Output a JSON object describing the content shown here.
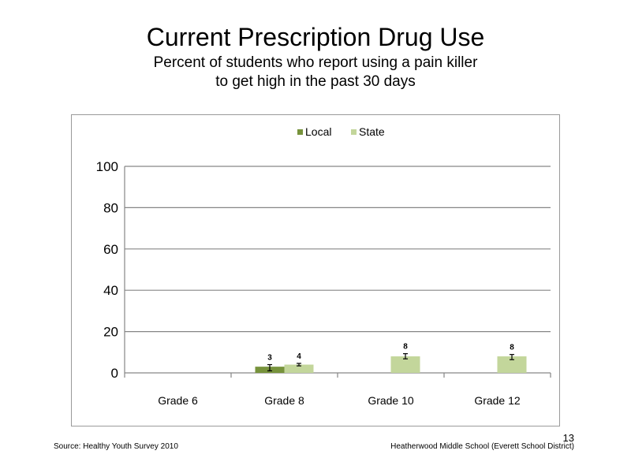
{
  "slide": {
    "title": "Current Prescription Drug Use",
    "subtitle_line1": "Percent of students who report using a pain killer",
    "subtitle_line2": "to get high in the past 30 days"
  },
  "footer": {
    "source": "Source: Healthy Youth Survey 2010",
    "school": "Heatherwood Middle  School (Everett School District)",
    "page_number": "13"
  },
  "chart_data": {
    "type": "bar",
    "title": "",
    "xlabel": "",
    "ylabel": "",
    "categories": [
      "Grade 6",
      "Grade 8",
      "Grade 10",
      "Grade 12"
    ],
    "ylim": [
      0,
      100
    ],
    "yticks": [
      0,
      20,
      40,
      60,
      80,
      100
    ],
    "grid": true,
    "legend_position": "top-center",
    "series": [
      {
        "name": "Local",
        "color": "#77933C",
        "values": [
          null,
          3,
          null,
          null
        ],
        "labels": [
          "",
          "3",
          "",
          ""
        ],
        "error": [
          null,
          [
            1,
            4
          ],
          null,
          null
        ]
      },
      {
        "name": "State",
        "color": "#C3D69B",
        "values": [
          null,
          4,
          8,
          8
        ],
        "labels": [
          "",
          "4",
          "8",
          "8"
        ],
        "error": [
          null,
          [
            3.4,
            4.6
          ],
          [
            6.8,
            9.3
          ],
          [
            6.4,
            8.9
          ]
        ]
      }
    ]
  }
}
